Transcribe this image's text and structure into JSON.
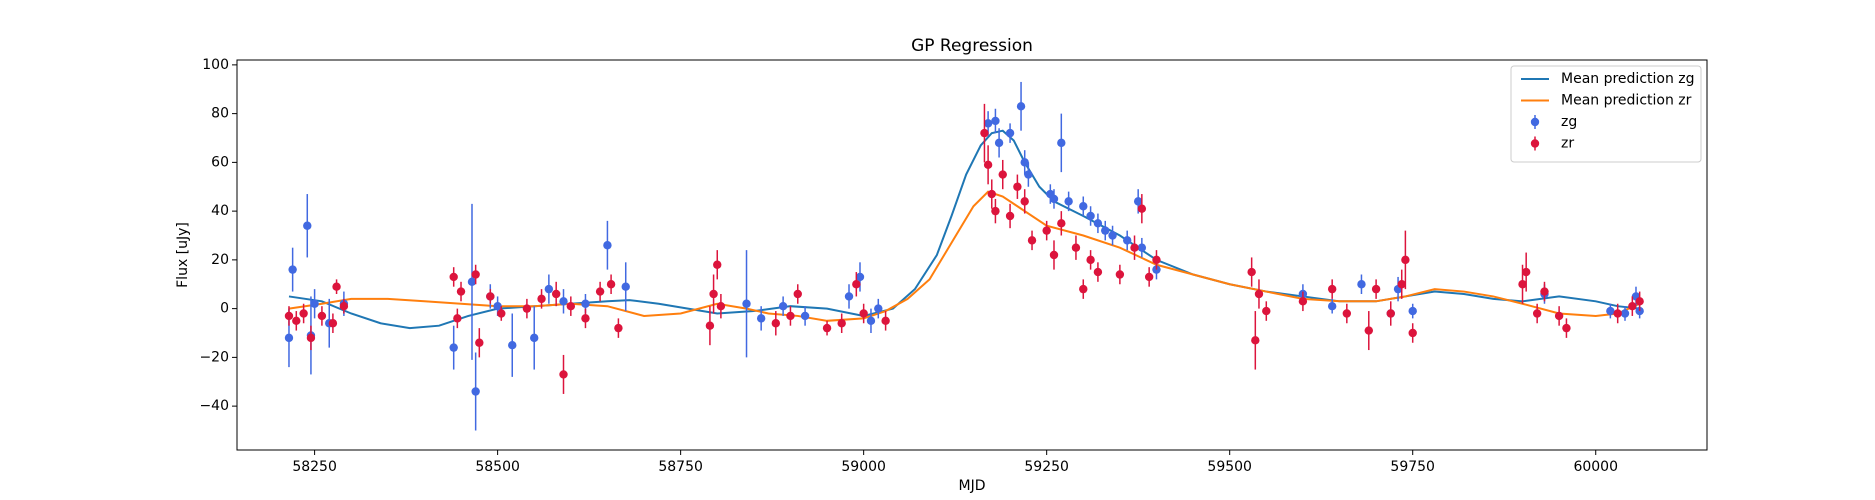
{
  "chart_data": {
    "type": "line",
    "title": "GP Regression",
    "xlabel": "MJD",
    "ylabel": "Flux [uJy]",
    "xlim": [
      58144,
      60152
    ],
    "ylim": [
      -58,
      102
    ],
    "xticks": [
      58250,
      58500,
      58750,
      59000,
      59250,
      59500,
      59750,
      60000
    ],
    "yticks": [
      {
        "value": -40,
        "label": "−40"
      },
      {
        "value": -20,
        "label": "−20"
      },
      0,
      20,
      40,
      60,
      80,
      100
    ],
    "legend": "upper right",
    "series": [
      {
        "name": "Mean prediction zg",
        "type": "line",
        "color": "#1f77b4",
        "x": [
          58215,
          58260,
          58300,
          58340,
          58380,
          58420,
          58460,
          58500,
          58550,
          58600,
          58650,
          58680,
          58720,
          58760,
          58800,
          58850,
          58900,
          58950,
          59000,
          59040,
          59070,
          59100,
          59120,
          59140,
          59160,
          59175,
          59190,
          59205,
          59220,
          59240,
          59260,
          59300,
          59350,
          59400,
          59450,
          59500,
          59550,
          59600,
          59650,
          59700,
          59740,
          59780,
          59820,
          59860,
          59900,
          59950,
          60000,
          60030,
          60060
        ],
        "values": [
          5,
          3,
          -2,
          -6,
          -8,
          -7,
          -3,
          0,
          1,
          2,
          3,
          3.5,
          2,
          0,
          -2,
          -1,
          1,
          0,
          -3,
          0,
          8,
          22,
          38,
          55,
          67,
          72,
          73,
          69,
          60,
          50,
          44,
          38,
          30,
          20,
          14,
          10,
          7,
          5,
          3,
          3,
          5,
          7,
          6,
          4,
          3,
          5,
          3,
          1,
          0
        ]
      },
      {
        "name": "Mean prediction zr",
        "type": "line",
        "color": "#ff7f0e",
        "x": [
          58215,
          58260,
          58300,
          58350,
          58400,
          58450,
          58500,
          58550,
          58600,
          58650,
          58700,
          58750,
          58800,
          58840,
          58870,
          58910,
          58950,
          59000,
          59030,
          59060,
          59090,
          59110,
          59130,
          59150,
          59170,
          59190,
          59210,
          59250,
          59300,
          59350,
          59400,
          59450,
          59500,
          59550,
          59600,
          59650,
          59700,
          59740,
          59780,
          59820,
          59860,
          59900,
          59950,
          60000,
          60030,
          60060
        ],
        "values": [
          0,
          2,
          4,
          4,
          3,
          2,
          1,
          1,
          2,
          1,
          -3,
          -2,
          2,
          0,
          -2,
          -3,
          -5,
          -4,
          -1,
          4,
          12,
          22,
          32,
          42,
          48,
          46,
          42,
          34,
          30,
          25,
          18,
          14,
          10,
          7,
          4,
          3,
          3,
          5,
          8,
          7,
          5,
          2,
          -2,
          -3,
          -2,
          2
        ]
      },
      {
        "name": "zg",
        "type": "errorbar",
        "color": "#4169e1",
        "x": [
          58215,
          58220,
          58240,
          58245,
          58250,
          58270,
          58290,
          58440,
          58465,
          58470,
          58490,
          58500,
          58520,
          58550,
          58570,
          58590,
          58620,
          58650,
          58675,
          58840,
          58860,
          58890,
          58920,
          58980,
          58995,
          59010,
          59020,
          59170,
          59180,
          59185,
          59200,
          59215,
          59220,
          59225,
          59255,
          59260,
          59270,
          59280,
          59300,
          59310,
          59320,
          59330,
          59340,
          59360,
          59375,
          59380,
          59400,
          59600,
          59640,
          59680,
          59720,
          59730,
          59750,
          59930,
          60020,
          60040,
          60055,
          60060
        ],
        "values": [
          -12,
          16,
          34,
          -11,
          2,
          -6,
          2,
          -16,
          11,
          -34,
          5,
          1,
          -15,
          -12,
          8,
          3,
          2,
          26,
          9,
          2,
          -4,
          1,
          -3,
          5,
          13,
          -5,
          0,
          76,
          77,
          68,
          72,
          83,
          60,
          55,
          47,
          45,
          68,
          44,
          42,
          38,
          35,
          32,
          30,
          28,
          44,
          25,
          16,
          6,
          1,
          10,
          -2,
          8,
          -1,
          6,
          -1,
          -2,
          5,
          -1
        ],
        "errors": [
          12,
          9,
          13,
          16,
          6,
          10,
          5,
          9,
          32,
          16,
          5,
          4,
          13,
          13,
          6,
          5,
          4,
          10,
          10,
          22,
          5,
          4,
          4,
          5,
          6,
          5,
          4,
          5,
          5,
          6,
          4,
          10,
          5,
          5,
          4,
          4,
          12,
          4,
          4,
          4,
          4,
          4,
          4,
          4,
          5,
          4,
          4,
          4,
          3,
          4,
          4,
          5,
          3,
          4,
          3,
          3,
          4,
          3
        ]
      },
      {
        "name": "zr",
        "type": "errorbar",
        "color": "#dc143c",
        "x": [
          58215,
          58225,
          58235,
          58245,
          58260,
          58275,
          58280,
          58290,
          58440,
          58445,
          58450,
          58470,
          58475,
          58490,
          58505,
          58540,
          58560,
          58580,
          58590,
          58600,
          58620,
          58640,
          58655,
          58665,
          58790,
          58795,
          58800,
          58805,
          58880,
          58900,
          58910,
          58950,
          58970,
          58990,
          59000,
          59030,
          59165,
          59170,
          59175,
          59180,
          59190,
          59200,
          59210,
          59220,
          59230,
          59250,
          59260,
          59270,
          59290,
          59300,
          59310,
          59320,
          59350,
          59370,
          59380,
          59390,
          59400,
          59530,
          59535,
          59540,
          59550,
          59600,
          59640,
          59660,
          59690,
          59700,
          59720,
          59735,
          59740,
          59750,
          59900,
          59905,
          59920,
          59930,
          59950,
          59960,
          60030,
          60050,
          60060
        ],
        "values": [
          -3,
          -5,
          -2,
          -12,
          -3,
          -6,
          9,
          1,
          13,
          -4,
          7,
          14,
          -14,
          5,
          -2,
          0,
          4,
          6,
          -27,
          1,
          -4,
          7,
          10,
          -8,
          -7,
          6,
          18,
          1,
          -6,
          -3,
          6,
          -8,
          -6,
          10,
          -2,
          -5,
          72,
          59,
          47,
          40,
          55,
          38,
          50,
          44,
          28,
          32,
          22,
          35,
          25,
          8,
          20,
          15,
          14,
          25,
          41,
          13,
          20,
          15,
          -13,
          6,
          -1,
          3,
          8,
          -2,
          -9,
          8,
          -2,
          10,
          20,
          -10,
          10,
          15,
          -2,
          7,
          -3,
          -8,
          -2,
          1,
          3
        ],
        "errors": [
          4,
          4,
          4,
          5,
          4,
          4,
          3,
          3,
          4,
          4,
          4,
          4,
          6,
          3,
          3,
          4,
          4,
          5,
          8,
          4,
          4,
          4,
          4,
          4,
          8,
          8,
          6,
          5,
          5,
          4,
          4,
          3,
          4,
          5,
          4,
          4,
          12,
          8,
          6,
          5,
          6,
          5,
          5,
          5,
          4,
          4,
          6,
          5,
          5,
          4,
          4,
          4,
          4,
          5,
          6,
          4,
          4,
          6,
          12,
          6,
          4,
          4,
          4,
          4,
          8,
          4,
          5,
          6,
          12,
          4,
          8,
          8,
          4,
          4,
          4,
          4,
          4,
          4,
          4
        ]
      }
    ]
  }
}
